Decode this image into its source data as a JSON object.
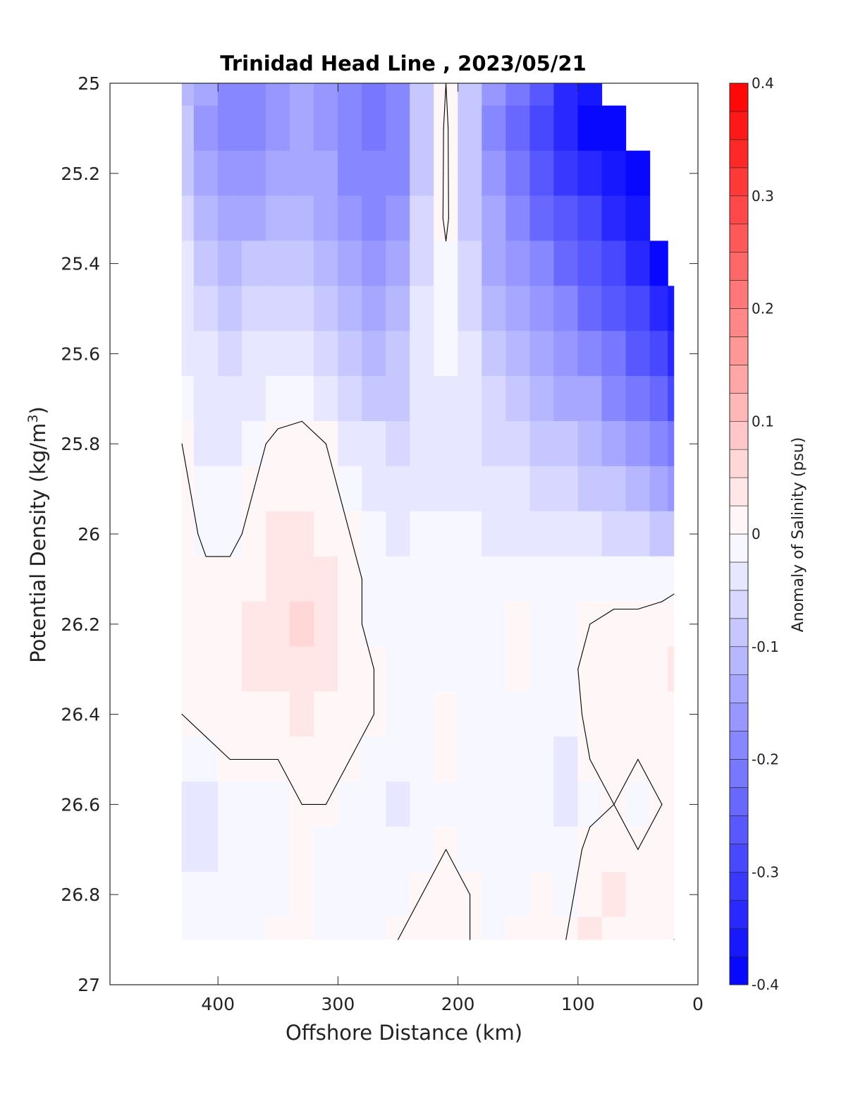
{
  "chart_data": {
    "type": "heatmap",
    "subtype": "filled-contour",
    "title": "Trinidad Head Line , 2023/05/21",
    "xlabel": "Offshore Distance (km)",
    "ylabel_main": "Potential Density (kg/m",
    "ylabel_sup": "3",
    "ylabel_close": ")",
    "colorbar_label": "Anomaly of Salinity (psu)",
    "xlim": [
      490,
      0
    ],
    "x_reversed": true,
    "ylim": [
      25,
      27
    ],
    "y_reversed": true,
    "x_ticks": [
      400,
      300,
      200,
      100,
      0
    ],
    "x_tick_labels": [
      "400",
      "300",
      "200",
      "100",
      "0"
    ],
    "y_ticks": [
      25,
      25.2,
      25.4,
      25.6,
      25.8,
      26,
      26.2,
      26.4,
      26.6,
      26.8,
      27
    ],
    "y_tick_labels": [
      "25",
      "25.2",
      "25.4",
      "25.6",
      "25.8",
      "26",
      "26.2",
      "26.4",
      "26.6",
      "26.8",
      "27"
    ],
    "colorbar_range": [
      -0.4,
      0.4
    ],
    "colorbar_step": 0.025,
    "colorbar_ticks": [
      0.4,
      0.3,
      0.2,
      0.1,
      0,
      -0.1,
      -0.2,
      -0.3,
      -0.4
    ],
    "colorbar_tick_labels": [
      "0.4",
      "0.3",
      "0.2",
      "0.1",
      "0",
      "-0.1",
      "-0.2",
      "-0.3",
      "-0.4"
    ],
    "colormap": {
      "negative": "#0000ff",
      "zero": "#ffffff",
      "positive": "#ff0000"
    },
    "zero_contour_color": "#000000",
    "x": [
      430,
      410,
      390,
      370,
      350,
      330,
      310,
      290,
      270,
      250,
      230,
      210,
      190,
      170,
      150,
      130,
      110,
      90,
      70,
      50,
      30,
      20
    ],
    "y": [
      25.0,
      25.1,
      25.2,
      25.3,
      25.4,
      25.5,
      25.6,
      25.7,
      25.8,
      25.9,
      26.0,
      26.1,
      26.2,
      26.3,
      26.4,
      26.5,
      26.6,
      26.7,
      26.8,
      26.9
    ],
    "z": [
      [
        -0.11,
        -0.15,
        -0.18,
        -0.18,
        -0.17,
        -0.15,
        -0.16,
        -0.18,
        -0.22,
        -0.2,
        -0.1,
        0.0,
        -0.08,
        -0.17,
        -0.22,
        -0.26,
        -0.33,
        -0.37,
        null,
        null,
        null,
        null
      ],
      [
        -0.1,
        -0.16,
        -0.2,
        -0.18,
        -0.16,
        -0.15,
        -0.17,
        -0.2,
        -0.22,
        -0.2,
        -0.09,
        0.01,
        -0.1,
        -0.18,
        -0.24,
        -0.28,
        -0.35,
        -0.38,
        -0.4,
        null,
        null,
        null
      ],
      [
        -0.09,
        -0.13,
        -0.17,
        -0.16,
        -0.15,
        -0.13,
        -0.15,
        -0.18,
        -0.2,
        -0.18,
        -0.08,
        0.01,
        -0.09,
        -0.17,
        -0.22,
        -0.27,
        -0.31,
        -0.34,
        -0.37,
        -0.39,
        null,
        null
      ],
      [
        -0.07,
        -0.11,
        -0.14,
        -0.13,
        -0.12,
        -0.11,
        -0.13,
        -0.16,
        -0.18,
        -0.16,
        -0.07,
        0.01,
        -0.08,
        -0.15,
        -0.2,
        -0.24,
        -0.27,
        -0.3,
        -0.34,
        -0.37,
        null,
        null
      ],
      [
        -0.05,
        -0.09,
        -0.11,
        -0.1,
        -0.09,
        -0.08,
        -0.11,
        -0.14,
        -0.16,
        -0.14,
        -0.06,
        -0.01,
        -0.07,
        -0.13,
        -0.17,
        -0.2,
        -0.23,
        -0.26,
        -0.3,
        -0.34,
        -0.38,
        null
      ],
      [
        -0.04,
        -0.07,
        -0.09,
        -0.07,
        -0.06,
        -0.06,
        -0.08,
        -0.11,
        -0.14,
        -0.12,
        -0.05,
        -0.01,
        -0.06,
        -0.11,
        -0.14,
        -0.17,
        -0.2,
        -0.23,
        -0.26,
        -0.3,
        -0.34,
        -0.37
      ],
      [
        -0.03,
        -0.05,
        -0.07,
        -0.05,
        -0.04,
        -0.04,
        -0.06,
        -0.08,
        -0.11,
        -0.1,
        -0.04,
        -0.02,
        -0.05,
        -0.09,
        -0.12,
        -0.14,
        -0.16,
        -0.19,
        -0.22,
        -0.26,
        -0.3,
        -0.33
      ],
      [
        -0.02,
        -0.04,
        -0.05,
        -0.03,
        -0.02,
        -0.01,
        -0.03,
        -0.06,
        -0.08,
        -0.08,
        -0.04,
        -0.03,
        -0.05,
        -0.07,
        -0.09,
        -0.11,
        -0.13,
        -0.15,
        -0.18,
        -0.21,
        -0.25,
        -0.28
      ],
      [
        0.0,
        -0.03,
        -0.03,
        -0.01,
        0.01,
        0.01,
        0.0,
        -0.03,
        -0.05,
        -0.06,
        -0.04,
        -0.03,
        -0.05,
        -0.06,
        -0.07,
        -0.08,
        -0.1,
        -0.12,
        -0.14,
        -0.17,
        -0.2,
        -0.22
      ],
      [
        0.01,
        -0.02,
        -0.02,
        0.0,
        0.02,
        0.02,
        0.01,
        -0.01,
        -0.03,
        -0.05,
        -0.03,
        -0.03,
        -0.04,
        -0.04,
        -0.05,
        -0.06,
        -0.07,
        -0.09,
        -0.1,
        -0.12,
        -0.14,
        -0.16
      ],
      [
        0.02,
        -0.01,
        -0.01,
        0.01,
        0.03,
        0.03,
        0.02,
        0.0,
        -0.02,
        -0.03,
        -0.02,
        -0.02,
        -0.02,
        -0.03,
        -0.03,
        -0.03,
        -0.04,
        -0.05,
        -0.06,
        -0.07,
        -0.08,
        -0.09
      ],
      [
        0.02,
        0.01,
        0.01,
        0.02,
        0.03,
        0.04,
        0.03,
        0.01,
        -0.01,
        -0.02,
        -0.02,
        -0.01,
        -0.01,
        -0.02,
        -0.01,
        -0.01,
        -0.02,
        -0.02,
        -0.02,
        -0.02,
        -0.02,
        -0.01
      ],
      [
        0.02,
        0.01,
        0.02,
        0.03,
        0.03,
        0.05,
        0.03,
        0.01,
        -0.01,
        -0.02,
        -0.02,
        -0.01,
        -0.01,
        -0.01,
        0.0,
        -0.01,
        -0.01,
        0.0,
        0.01,
        0.01,
        0.02,
        0.02
      ],
      [
        0.01,
        0.01,
        0.02,
        0.03,
        0.03,
        0.04,
        0.03,
        0.01,
        0.0,
        -0.01,
        -0.01,
        -0.01,
        -0.01,
        -0.01,
        0.0,
        -0.01,
        -0.01,
        0.01,
        0.02,
        0.01,
        0.02,
        0.03
      ],
      [
        0.0,
        0.01,
        0.01,
        0.02,
        0.02,
        0.03,
        0.02,
        0.01,
        0.0,
        -0.01,
        -0.01,
        0.0,
        -0.01,
        -0.01,
        -0.01,
        -0.02,
        -0.02,
        0.01,
        0.02,
        0.01,
        0.02,
        0.02
      ],
      [
        -0.02,
        -0.01,
        0.0,
        0.0,
        0.0,
        0.01,
        0.01,
        0.0,
        -0.01,
        -0.02,
        -0.01,
        0.0,
        -0.01,
        -0.01,
        -0.02,
        -0.02,
        -0.03,
        0.0,
        0.01,
        0.0,
        0.01,
        0.02
      ],
      [
        -0.04,
        -0.03,
        -0.02,
        -0.01,
        -0.01,
        0.0,
        0.0,
        -0.01,
        -0.02,
        -0.03,
        -0.02,
        -0.01,
        -0.02,
        -0.02,
        -0.02,
        -0.02,
        -0.03,
        -0.01,
        0.0,
        -0.01,
        0.0,
        0.01
      ],
      [
        -0.03,
        -0.03,
        -0.02,
        -0.02,
        -0.01,
        0.0,
        -0.01,
        -0.02,
        -0.02,
        -0.02,
        -0.01,
        0.0,
        -0.01,
        -0.02,
        -0.01,
        -0.01,
        -0.02,
        0.01,
        0.02,
        0.0,
        0.01,
        0.01
      ],
      [
        -0.02,
        -0.02,
        -0.02,
        -0.01,
        -0.01,
        0.0,
        -0.01,
        -0.01,
        -0.01,
        -0.01,
        0.0,
        0.01,
        0.0,
        -0.01,
        -0.01,
        0.0,
        -0.01,
        0.02,
        0.03,
        0.01,
        0.01,
        0.01
      ],
      [
        -0.02,
        -0.02,
        -0.01,
        -0.01,
        0.0,
        0.0,
        -0.01,
        -0.01,
        -0.01,
        0.0,
        0.01,
        0.02,
        0.0,
        -0.01,
        0.0,
        0.0,
        0.0,
        0.03,
        0.02,
        0.01,
        0.01,
        0.0
      ]
    ],
    "grid": false,
    "legend": "colorbar-right"
  }
}
